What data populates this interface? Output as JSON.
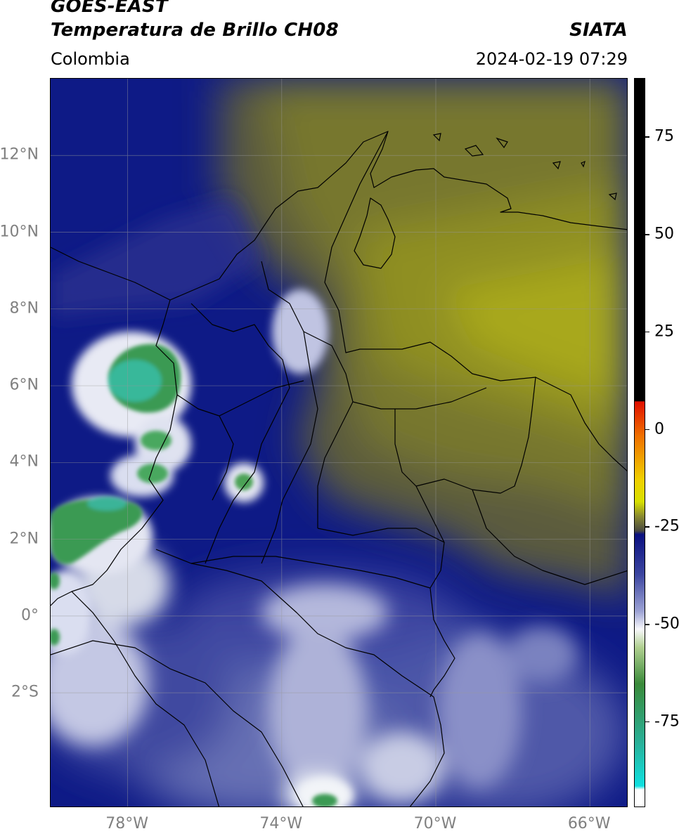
{
  "header": {
    "line1": "GOES-EAST",
    "line2": "Temperatura de Brillo CH08",
    "brand": "SIATA",
    "region": "Colombia",
    "timestamp": "2024-02-19 07:29"
  },
  "map": {
    "lat_range": [
      -5.0,
      14.0
    ],
    "lon_range": [
      -80.0,
      -65.0
    ],
    "lat_ticks": [
      {
        "value": 12,
        "label": "12°N"
      },
      {
        "value": 10,
        "label": "10°N"
      },
      {
        "value": 8,
        "label": "8°N"
      },
      {
        "value": 6,
        "label": "6°N"
      },
      {
        "value": 4,
        "label": "4°N"
      },
      {
        "value": 2,
        "label": "2°N"
      },
      {
        "value": 0,
        "label": "0°"
      },
      {
        "value": -2,
        "label": "2°S"
      }
    ],
    "lon_ticks": [
      {
        "value": -78,
        "label": "78°W"
      },
      {
        "value": -74,
        "label": "74°W"
      },
      {
        "value": -70,
        "label": "70°W"
      },
      {
        "value": -66,
        "label": "66°W"
      }
    ],
    "grid": true,
    "colors": {
      "dry_yellow": "#a8a820",
      "olive": "#6b6b38",
      "navy": "#0d1480",
      "mid_blue": "#3c46a0",
      "light_blue": "#9ca2d4",
      "white": "#f2f4f8",
      "green": "#3a9a52",
      "teal": "#3ac2a8"
    }
  },
  "colorbar": {
    "range": [
      -97,
      90
    ],
    "ticks": [
      {
        "value": 75,
        "label": "75"
      },
      {
        "value": 50,
        "label": "50"
      },
      {
        "value": 25,
        "label": "25"
      },
      {
        "value": 0,
        "label": "0"
      },
      {
        "value": -25,
        "label": "-25"
      },
      {
        "value": -50,
        "label": "-50"
      },
      {
        "value": -75,
        "label": "-75"
      }
    ]
  }
}
